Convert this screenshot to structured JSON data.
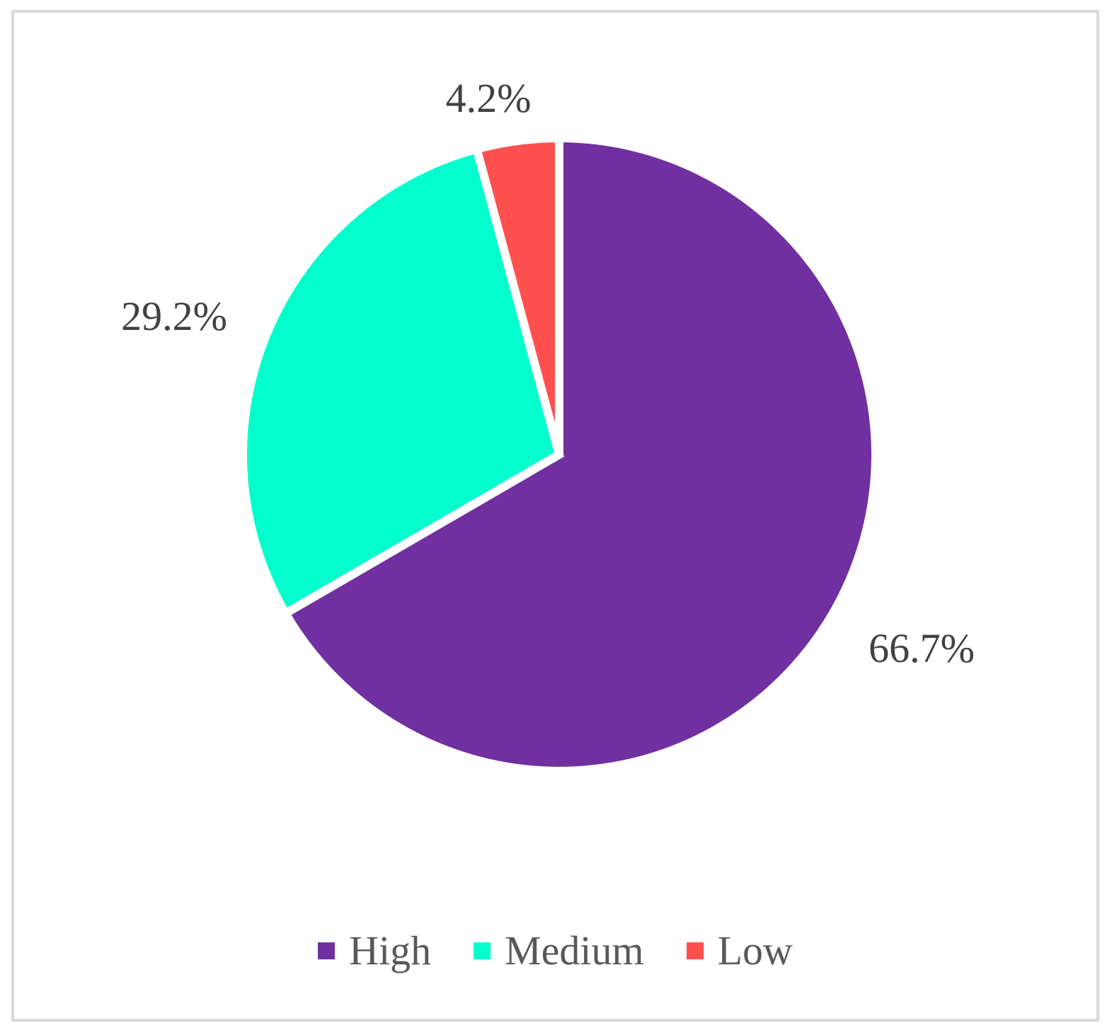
{
  "chart_data": {
    "type": "pie",
    "categories": [
      "High",
      "Medium",
      "Low"
    ],
    "values": [
      66.7,
      29.2,
      4.2
    ],
    "labels": [
      "66.7%",
      "29.2%",
      "4.2%"
    ],
    "colors": [
      "#7030a0",
      "#00ffcc",
      "#ff5050"
    ],
    "start": "12 o'clock",
    "direction": "clockwise",
    "legend_position": "bottom",
    "title": ""
  }
}
